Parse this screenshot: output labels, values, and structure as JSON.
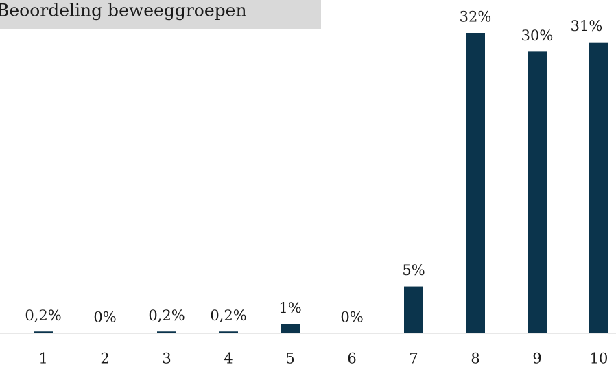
{
  "chart_data": {
    "type": "bar",
    "title": "Beoordeling beweeggroepen",
    "categories": [
      "1",
      "2",
      "3",
      "4",
      "5",
      "6",
      "7",
      "8",
      "9",
      "10"
    ],
    "values": [
      0.2,
      0,
      0.2,
      0.2,
      1,
      0,
      5,
      32,
      30,
      31
    ],
    "value_labels": [
      "0,2%",
      "0%",
      "0,2%",
      "0,2%",
      "1%",
      "0%",
      "5%",
      "32%",
      "30%",
      "31%"
    ],
    "color": "#0b344c"
  }
}
